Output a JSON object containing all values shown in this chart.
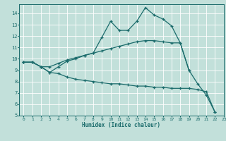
{
  "title": "",
  "xlabel": "Humidex (Indice chaleur)",
  "bg_color": "#c2e0da",
  "line_color": "#1a6b6b",
  "grid_color": "#ffffff",
  "xlim": [
    -0.5,
    23
  ],
  "ylim": [
    5,
    14.8
  ],
  "yticks": [
    5,
    6,
    7,
    8,
    9,
    10,
    11,
    12,
    13,
    14
  ],
  "xticks": [
    0,
    1,
    2,
    3,
    4,
    5,
    6,
    7,
    8,
    9,
    10,
    11,
    12,
    13,
    14,
    15,
    16,
    17,
    18,
    19,
    20,
    21,
    22,
    23
  ],
  "line1_x": [
    0,
    1,
    2,
    3,
    4,
    5,
    6,
    7,
    8,
    9,
    10,
    11,
    12,
    13,
    14,
    15,
    16,
    17,
    18,
    19,
    20,
    21,
    22
  ],
  "line1_y": [
    9.7,
    9.7,
    9.3,
    8.8,
    9.3,
    9.8,
    10.0,
    10.3,
    10.5,
    11.9,
    13.3,
    12.5,
    12.5,
    13.3,
    14.5,
    13.85,
    13.5,
    12.9,
    11.4,
    9.0,
    7.8,
    6.8,
    5.3
  ],
  "line2_x": [
    0,
    1,
    2,
    3,
    4,
    5,
    6,
    7,
    8,
    9,
    10,
    11,
    12,
    13,
    14,
    15,
    16,
    17,
    18,
    19
  ],
  "line2_y": [
    9.7,
    9.7,
    9.3,
    9.3,
    9.6,
    9.9,
    10.1,
    10.3,
    10.5,
    10.7,
    10.9,
    11.1,
    11.3,
    11.5,
    11.6,
    11.6,
    11.5,
    11.4,
    11.4,
    9.0
  ],
  "line3_x": [
    0,
    1,
    2,
    3,
    4,
    5,
    6,
    7,
    8,
    9,
    10,
    11,
    12,
    13,
    14,
    15,
    16,
    17,
    18,
    19,
    20,
    21,
    22
  ],
  "line3_y": [
    9.7,
    9.7,
    9.3,
    8.8,
    8.7,
    8.4,
    8.2,
    8.1,
    8.0,
    7.9,
    7.8,
    7.8,
    7.7,
    7.6,
    7.6,
    7.5,
    7.5,
    7.4,
    7.4,
    7.4,
    7.3,
    7.1,
    5.3
  ]
}
